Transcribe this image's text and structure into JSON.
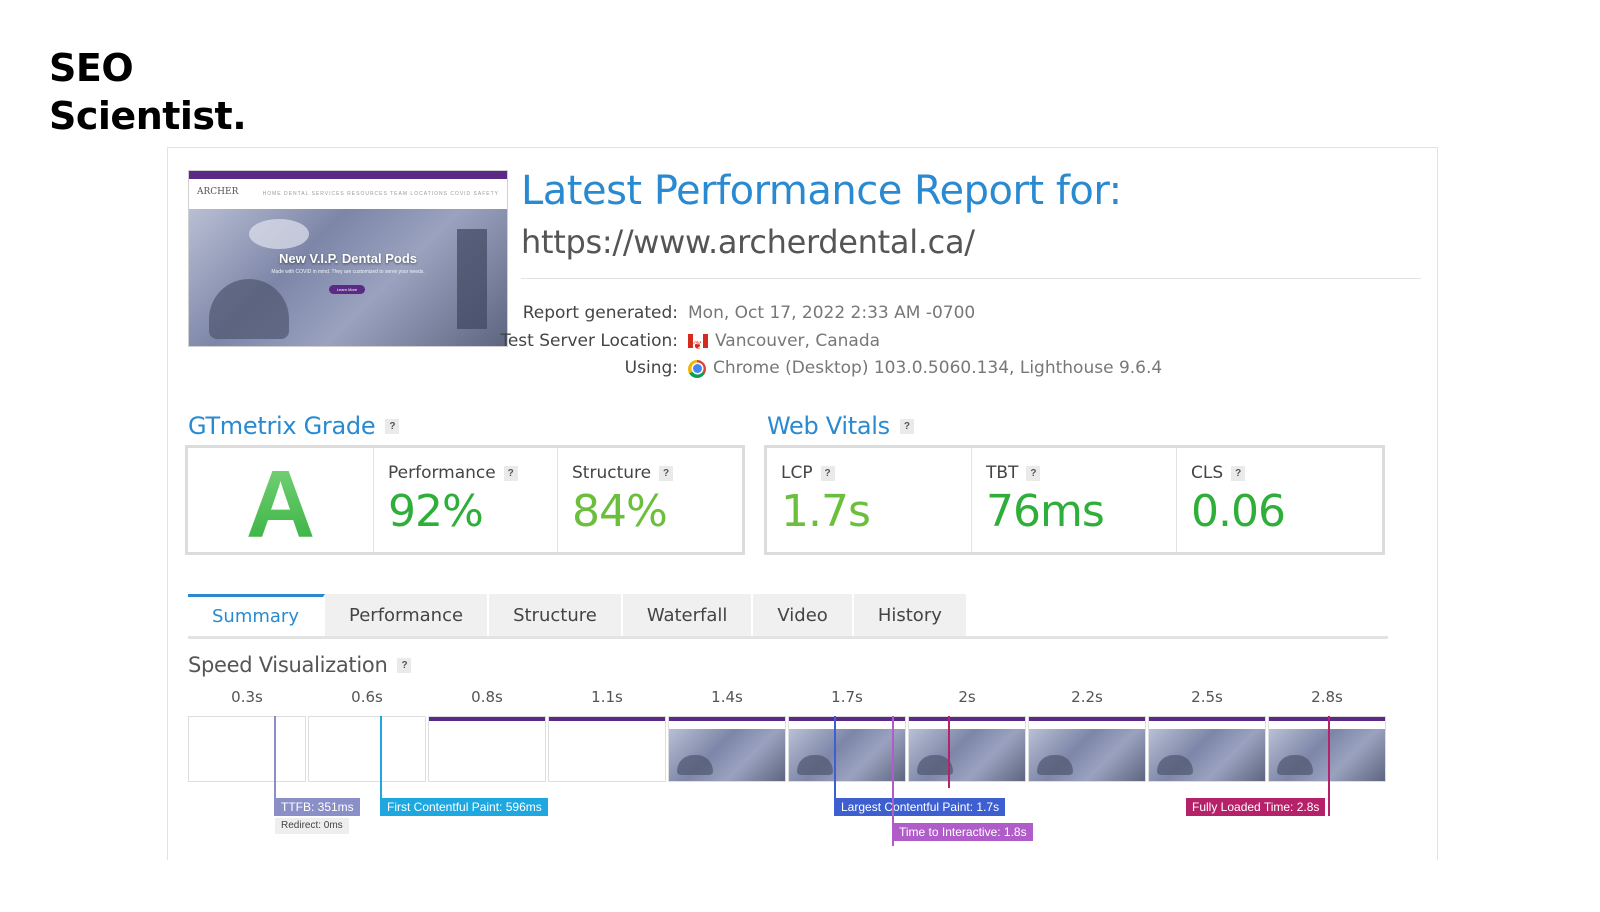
{
  "brand": {
    "line1": "SEO",
    "line2": "Scientist."
  },
  "report": {
    "title": "Latest Performance Report for:",
    "url": "https://www.archerdental.ca/",
    "thumbnail": {
      "logo": "ARCHER",
      "nav_links": "HOME   DENTAL SERVICES   RESOURCES   TEAM   LOCATIONS   COVID SAFETY",
      "hero_title": "New V.I.P. Dental Pods",
      "hero_sub": "Made with COVID in mind. They are customized to serve your needs.",
      "hero_button": "Learn More"
    },
    "meta": [
      {
        "label": "Report generated:",
        "value": "Mon, Oct 17, 2022 2:33 AM -0700",
        "icon": ""
      },
      {
        "label": "Test Server Location:",
        "value": "Vancouver, Canada",
        "icon": "canada-flag-icon"
      },
      {
        "label": "Using:",
        "value": "Chrome (Desktop) 103.0.5060.134, Lighthouse 9.6.4",
        "icon": "chrome-icon"
      }
    ]
  },
  "grade": {
    "section_title": "GTmetrix Grade",
    "letter": "A",
    "performance_label": "Performance",
    "performance_value": "92%",
    "structure_label": "Structure",
    "structure_value": "84%",
    "color": "#2fae3a"
  },
  "vitals": {
    "section_title": "Web Vitals",
    "lcp_label": "LCP",
    "lcp_value": "1.7s",
    "tbt_label": "TBT",
    "tbt_value": "76ms",
    "cls_label": "CLS",
    "cls_value": "0.06",
    "colors": {
      "lcp": "#6cbf3c",
      "tbt": "#2fae3a",
      "cls": "#2fae3a"
    }
  },
  "help_glyph": "?",
  "tabs": [
    "Summary",
    "Performance",
    "Structure",
    "Waterfall",
    "Video",
    "History"
  ],
  "active_tab": "Summary",
  "speed": {
    "title": "Speed Visualization",
    "frames": [
      "0.3s",
      "0.6s",
      "0.8s",
      "1.1s",
      "1.4s",
      "1.7s",
      "2s",
      "2.2s",
      "2.5s",
      "2.8s"
    ],
    "markers": {
      "ttfb": {
        "label": "TTFB: 351ms",
        "color": "#8a8fc7"
      },
      "fcp": {
        "label": "First Contentful Paint: 596ms",
        "color": "#1fa8e0"
      },
      "lcp": {
        "label": "Largest Contentful Paint: 1.7s",
        "color": "#3d5fd0"
      },
      "tti": {
        "label": "Time to Interactive: 1.8s",
        "color": "#b05cc9"
      },
      "fully_loaded": {
        "label": "Fully Loaded Time: 2.8s",
        "color": "#b5226a"
      }
    },
    "ttfb_sub": "Redirect: 0ms"
  }
}
